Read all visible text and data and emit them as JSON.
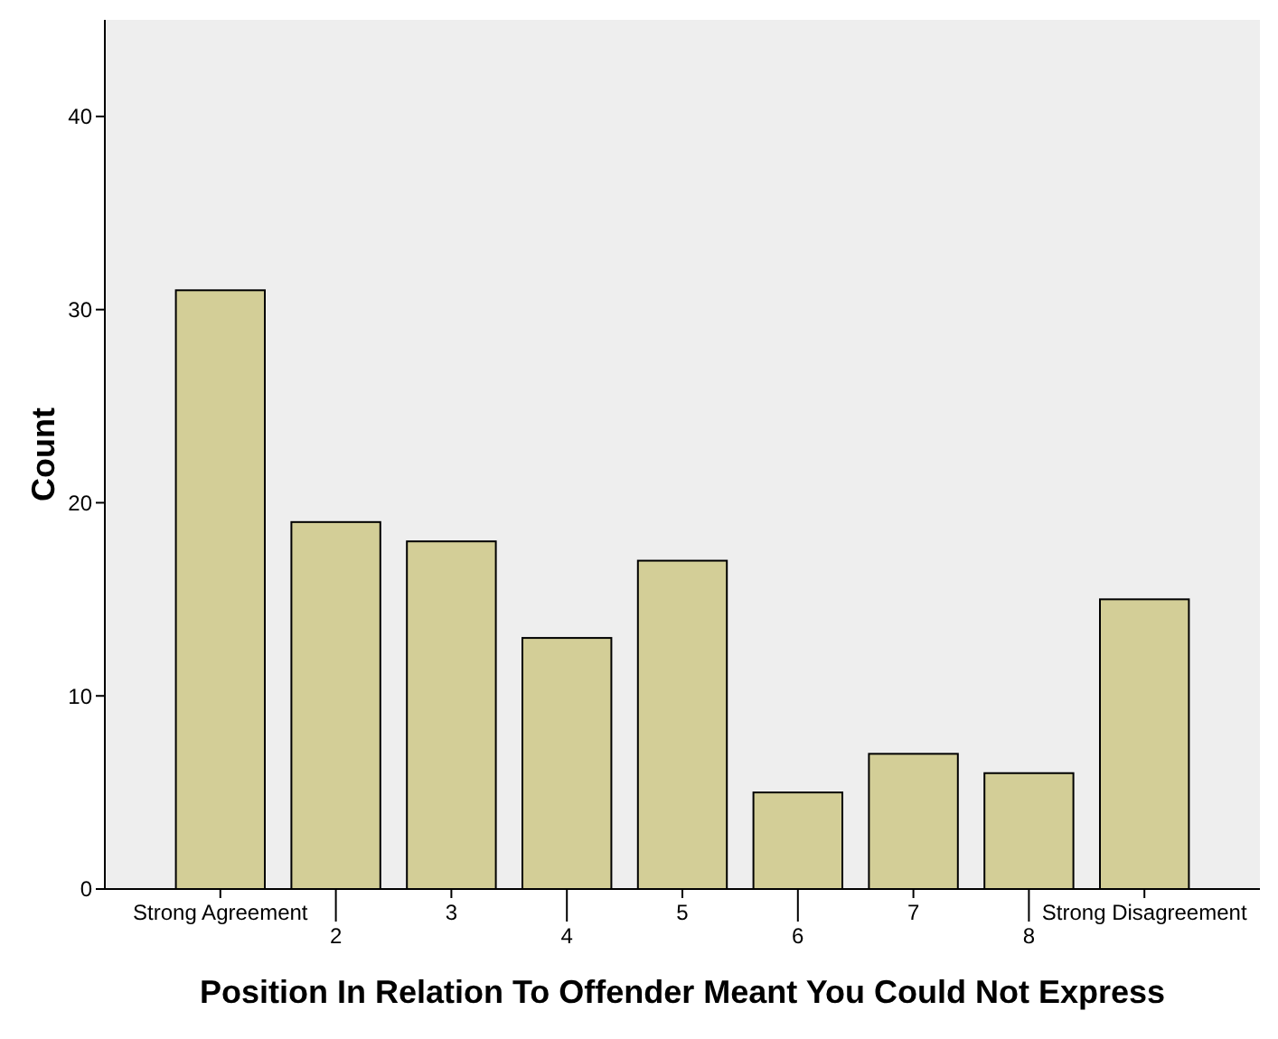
{
  "chart_data": {
    "type": "bar",
    "xlabel": "Position In Relation To Offender Meant You Could Not Express",
    "ylabel": "Count",
    "categories": [
      "Strong Agreement",
      "2",
      "3",
      "4",
      "5",
      "6",
      "7",
      "8",
      "Strong Disagreement"
    ],
    "values": [
      31,
      19,
      18,
      13,
      17,
      5,
      7,
      6,
      15
    ],
    "color": "#d3ce97",
    "ylim": [
      0,
      45
    ],
    "yticks": [
      0,
      10,
      20,
      30,
      40
    ],
    "grid": false
  }
}
